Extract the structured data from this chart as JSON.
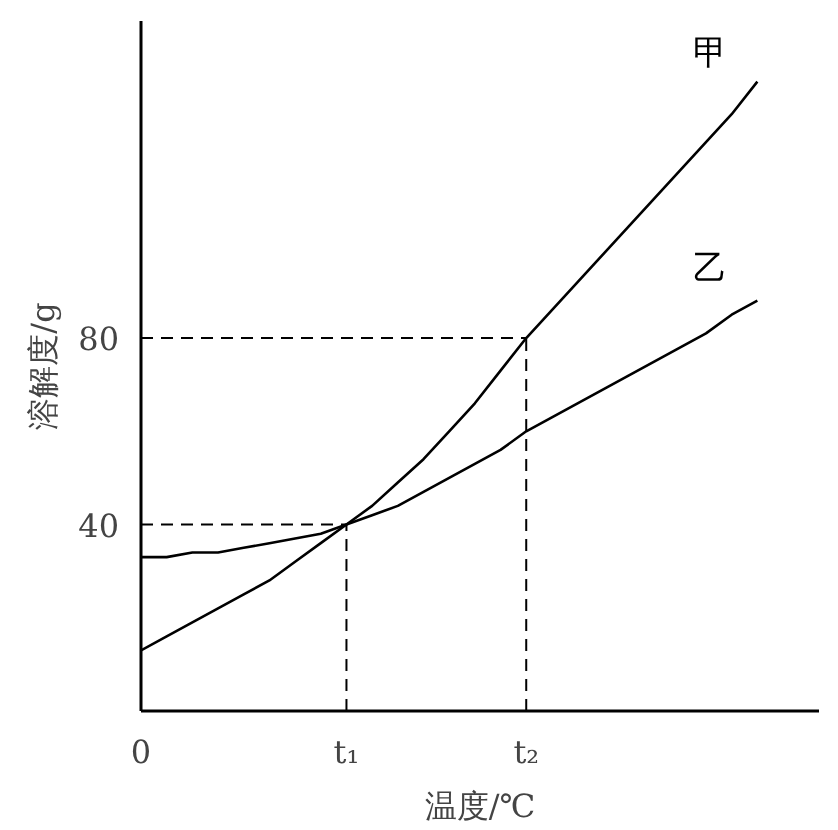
{
  "chart_data": {
    "type": "line",
    "xlabel": "温度/℃",
    "ylabel": "溶解度/g",
    "categories": [
      "0",
      null,
      null,
      null,
      null,
      null,
      null,
      null,
      "t₁",
      null,
      null,
      null,
      null,
      null,
      null,
      "t₂",
      null,
      null,
      null,
      null,
      null,
      null,
      null,
      null,
      null
    ],
    "ylim": [
      0,
      148
    ],
    "yticks": [
      40,
      80
    ],
    "grid": false,
    "legend": false,
    "marker": "none",
    "series": [
      {
        "name": "甲",
        "color": "#000000",
        "values": [
          13,
          16,
          19,
          22,
          25,
          28,
          32,
          36,
          40,
          44,
          49,
          54,
          60,
          66,
          73,
          80,
          86,
          92,
          98,
          104,
          110,
          116,
          122,
          128,
          135
        ]
      },
      {
        "name": "乙",
        "color": "#000000",
        "values": [
          33,
          33,
          34,
          34,
          35,
          36,
          37,
          38,
          40,
          42,
          44,
          47,
          50,
          53,
          56,
          60,
          63,
          66,
          69,
          72,
          75,
          78,
          81,
          85,
          88
        ]
      }
    ],
    "ref_lines": [
      {
        "axis": "y",
        "value": 40,
        "line_style": "dashed",
        "color": "#000000"
      },
      {
        "axis": "x",
        "value": "t₁",
        "line_style": "dashed",
        "color": "#000000"
      },
      {
        "axis": "y",
        "value": 80,
        "line_style": "dashed",
        "color": "#000000"
      },
      {
        "axis": "x",
        "value": "t₂",
        "line_style": "dashed",
        "color": "#000000"
      }
    ]
  }
}
